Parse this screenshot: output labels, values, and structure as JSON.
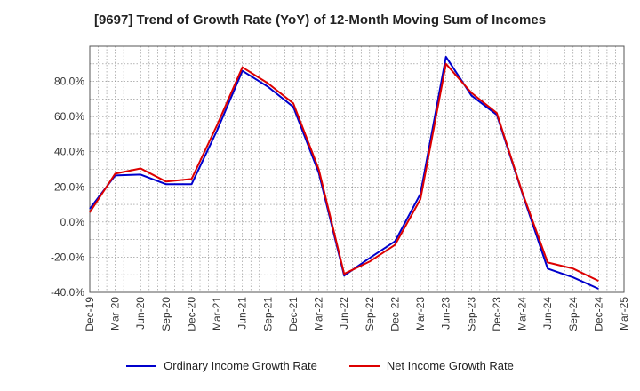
{
  "chart_data": {
    "type": "line",
    "title": "[9697]  Trend of Growth Rate (YoY) of 12-Month Moving Sum of Incomes",
    "xlabel": "",
    "ylabel": "",
    "ylim": [
      -40,
      100
    ],
    "y_ticks": [
      -40,
      -20,
      0,
      20,
      40,
      60,
      80
    ],
    "y_tick_labels": [
      "-40.0%",
      "-20.0%",
      "0.0%",
      "20.0%",
      "40.0%",
      "60.0%",
      "80.0%"
    ],
    "grid": true,
    "legend_position": "bottom",
    "x_tick_labels": [
      "Dec-19",
      "Mar-20",
      "Jun-20",
      "Sep-20",
      "Dec-20",
      "Mar-21",
      "Jun-21",
      "Sep-21",
      "Dec-21",
      "Mar-22",
      "Jun-22",
      "Sep-22",
      "Dec-22",
      "Mar-23",
      "Jun-23",
      "Sep-23",
      "Dec-23",
      "Mar-24",
      "Jun-24",
      "Sep-24",
      "Dec-24",
      "Mar-25"
    ],
    "x": [
      "Dec-19",
      "Mar-20",
      "Jun-20",
      "Sep-20",
      "Dec-20",
      "Mar-21",
      "Jun-21",
      "Sep-21",
      "Dec-21",
      "Mar-22",
      "Jun-22",
      "Sep-22",
      "Dec-22",
      "Mar-23",
      "Jun-23",
      "Sep-23",
      "Dec-23",
      "Mar-24",
      "Jun-24",
      "Sep-24",
      "Dec-24"
    ],
    "series": [
      {
        "name": "Ordinary Income Growth Rate",
        "color": "#0000cc",
        "values": [
          7.5,
          26.5,
          27,
          21.5,
          21.5,
          52,
          86,
          77,
          65.5,
          28,
          -30.5,
          -20.5,
          -11,
          16,
          94,
          72,
          61,
          16.5,
          -26.5,
          -31.5,
          -38
        ]
      },
      {
        "name": "Net Income Growth Rate",
        "color": "#dd0000",
        "values": [
          5.5,
          27.5,
          30.5,
          23,
          24.5,
          55,
          88,
          79,
          67.5,
          30,
          -29.5,
          -22.5,
          -13,
          13,
          90,
          73.5,
          62,
          17,
          -23,
          -26.5,
          -33.5
        ]
      }
    ]
  }
}
